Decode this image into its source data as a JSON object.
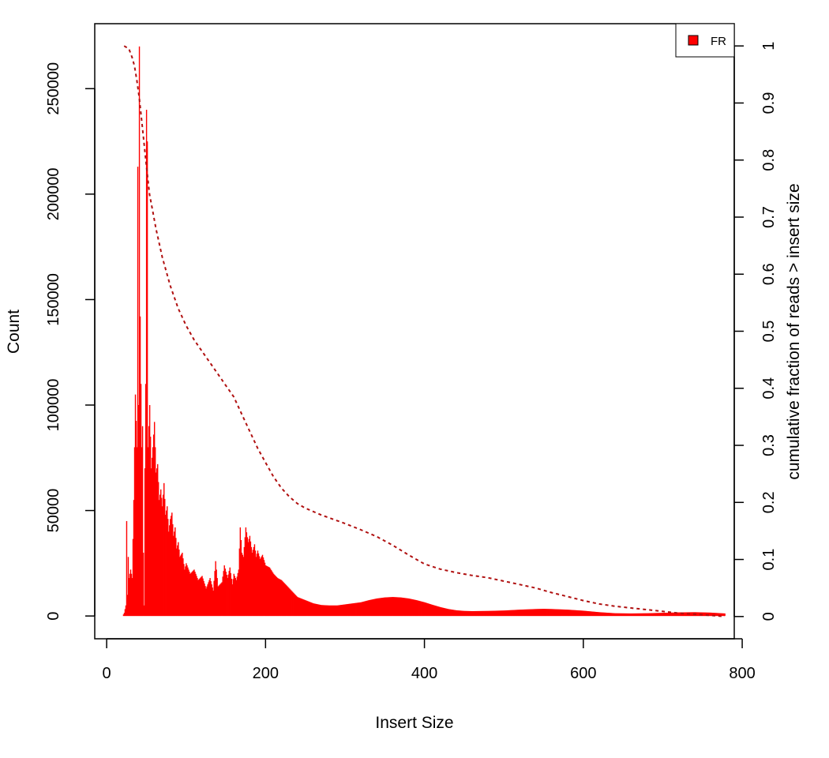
{
  "chart_data": {
    "type": "bar",
    "xlabel": "Insert Size",
    "ylabel": "Count",
    "y2label": "cumulative fraction of reads > insert size",
    "xlim": [
      -15,
      790
    ],
    "ylim": [
      -10800,
      280800
    ],
    "y2lim": [
      -0.039,
      1.039
    ],
    "x_ticks": [
      "0",
      "200",
      "400",
      "600",
      "800"
    ],
    "x_tick_values": [
      0,
      200,
      400,
      600,
      800
    ],
    "y_ticks": [
      "0",
      "50000",
      "100000",
      "150000",
      "200000",
      "250000"
    ],
    "y_tick_values": [
      0,
      50000,
      100000,
      150000,
      200000,
      250000
    ],
    "y2_ticks": [
      "0",
      "0.1",
      "0.2",
      "0.3",
      "0.4",
      "0.5",
      "0.6",
      "0.7",
      "0.8",
      "0.9",
      "1"
    ],
    "y2_tick_values": [
      0,
      0.1,
      0.2,
      0.3,
      0.4,
      0.5,
      0.6,
      0.7,
      0.8,
      0.9,
      1
    ],
    "legend": {
      "label": "FR",
      "position": "top-right",
      "color": "#ff0000"
    },
    "bar_color": "#ff0000",
    "cumulative_color": "#b01010",
    "histogram": [
      [
        20,
        0
      ],
      [
        22,
        1500
      ],
      [
        24,
        5000
      ],
      [
        25,
        45000
      ],
      [
        26,
        10000
      ],
      [
        27,
        28000
      ],
      [
        28,
        18000
      ],
      [
        30,
        22000
      ],
      [
        32,
        18000
      ],
      [
        34,
        55000
      ],
      [
        36,
        105000
      ],
      [
        38,
        80000
      ],
      [
        39,
        213000
      ],
      [
        40,
        100000
      ],
      [
        41,
        270000
      ],
      [
        42,
        142000
      ],
      [
        43,
        110000
      ],
      [
        44,
        80000
      ],
      [
        45,
        90000
      ],
      [
        46,
        30000
      ],
      [
        47,
        5000
      ],
      [
        48,
        70000
      ],
      [
        49,
        110000
      ],
      [
        50,
        240000
      ],
      [
        51,
        225000
      ],
      [
        52,
        80000
      ],
      [
        54,
        100000
      ],
      [
        56,
        70000
      ],
      [
        58,
        80000
      ],
      [
        60,
        92000
      ],
      [
        62,
        68000
      ],
      [
        64,
        72000
      ],
      [
        66,
        55000
      ],
      [
        68,
        60000
      ],
      [
        70,
        52000
      ],
      [
        72,
        63000
      ],
      [
        74,
        48000
      ],
      [
        76,
        52000
      ],
      [
        78,
        40000
      ],
      [
        80,
        46000
      ],
      [
        82,
        49000
      ],
      [
        84,
        38000
      ],
      [
        86,
        42000
      ],
      [
        88,
        32000
      ],
      [
        90,
        35000
      ],
      [
        92,
        28000
      ],
      [
        95,
        30000
      ],
      [
        98,
        22000
      ],
      [
        100,
        25000
      ],
      [
        105,
        20000
      ],
      [
        110,
        22000
      ],
      [
        115,
        17000
      ],
      [
        120,
        19000
      ],
      [
        125,
        13000
      ],
      [
        130,
        18000
      ],
      [
        134,
        12000
      ],
      [
        137,
        26000
      ],
      [
        140,
        14000
      ],
      [
        145,
        16000
      ],
      [
        148,
        24000
      ],
      [
        152,
        18000
      ],
      [
        155,
        23000
      ],
      [
        158,
        15000
      ],
      [
        160,
        20000
      ],
      [
        163,
        17000
      ],
      [
        166,
        22000
      ],
      [
        168,
        42000
      ],
      [
        170,
        30000
      ],
      [
        172,
        28000
      ],
      [
        175,
        42000
      ],
      [
        178,
        35000
      ],
      [
        180,
        38000
      ],
      [
        183,
        30000
      ],
      [
        186,
        34000
      ],
      [
        188,
        28000
      ],
      [
        190,
        31000
      ],
      [
        193,
        27000
      ],
      [
        196,
        29000
      ],
      [
        200,
        24000
      ],
      [
        205,
        23000
      ],
      [
        210,
        20000
      ],
      [
        215,
        18000
      ],
      [
        220,
        17000
      ],
      [
        225,
        15000
      ],
      [
        230,
        13000
      ],
      [
        235,
        11000
      ],
      [
        240,
        9000
      ],
      [
        250,
        7500
      ],
      [
        260,
        6000
      ],
      [
        270,
        5200
      ],
      [
        280,
        5000
      ],
      [
        290,
        5000
      ],
      [
        300,
        5500
      ],
      [
        310,
        6000
      ],
      [
        320,
        6500
      ],
      [
        330,
        7500
      ],
      [
        340,
        8300
      ],
      [
        350,
        8800
      ],
      [
        360,
        9000
      ],
      [
        370,
        8800
      ],
      [
        380,
        8300
      ],
      [
        390,
        7500
      ],
      [
        400,
        6500
      ],
      [
        410,
        5300
      ],
      [
        420,
        4200
      ],
      [
        430,
        3300
      ],
      [
        440,
        2700
      ],
      [
        450,
        2400
      ],
      [
        460,
        2300
      ],
      [
        480,
        2400
      ],
      [
        500,
        2600
      ],
      [
        520,
        3000
      ],
      [
        540,
        3300
      ],
      [
        550,
        3400
      ],
      [
        560,
        3300
      ],
      [
        580,
        3000
      ],
      [
        600,
        2500
      ],
      [
        620,
        1800
      ],
      [
        640,
        1300
      ],
      [
        660,
        1200
      ],
      [
        680,
        1300
      ],
      [
        700,
        1500
      ],
      [
        720,
        1700
      ],
      [
        740,
        1800
      ],
      [
        760,
        1600
      ],
      [
        778,
        1200
      ]
    ],
    "cumulative_fraction": [
      [
        22,
        1.0
      ],
      [
        28,
        0.995
      ],
      [
        32,
        0.98
      ],
      [
        35,
        0.965
      ],
      [
        38,
        0.94
      ],
      [
        41,
        0.91
      ],
      [
        44,
        0.87
      ],
      [
        47,
        0.83
      ],
      [
        50,
        0.79
      ],
      [
        54,
        0.74
      ],
      [
        58,
        0.71
      ],
      [
        62,
        0.68
      ],
      [
        70,
        0.63
      ],
      [
        80,
        0.58
      ],
      [
        90,
        0.54
      ],
      [
        100,
        0.51
      ],
      [
        110,
        0.485
      ],
      [
        120,
        0.465
      ],
      [
        130,
        0.445
      ],
      [
        140,
        0.425
      ],
      [
        150,
        0.405
      ],
      [
        160,
        0.385
      ],
      [
        170,
        0.355
      ],
      [
        180,
        0.325
      ],
      [
        190,
        0.295
      ],
      [
        200,
        0.27
      ],
      [
        210,
        0.245
      ],
      [
        220,
        0.225
      ],
      [
        230,
        0.21
      ],
      [
        240,
        0.198
      ],
      [
        250,
        0.19
      ],
      [
        270,
        0.178
      ],
      [
        300,
        0.163
      ],
      [
        320,
        0.152
      ],
      [
        340,
        0.14
      ],
      [
        360,
        0.125
      ],
      [
        380,
        0.108
      ],
      [
        400,
        0.092
      ],
      [
        420,
        0.083
      ],
      [
        440,
        0.077
      ],
      [
        460,
        0.072
      ],
      [
        480,
        0.068
      ],
      [
        500,
        0.062
      ],
      [
        520,
        0.056
      ],
      [
        540,
        0.05
      ],
      [
        560,
        0.042
      ],
      [
        580,
        0.035
      ],
      [
        600,
        0.028
      ],
      [
        620,
        0.022
      ],
      [
        640,
        0.018
      ],
      [
        660,
        0.015
      ],
      [
        680,
        0.012
      ],
      [
        700,
        0.009
      ],
      [
        720,
        0.006
      ],
      [
        740,
        0.004
      ],
      [
        760,
        0.002
      ],
      [
        778,
        0.0
      ]
    ]
  }
}
